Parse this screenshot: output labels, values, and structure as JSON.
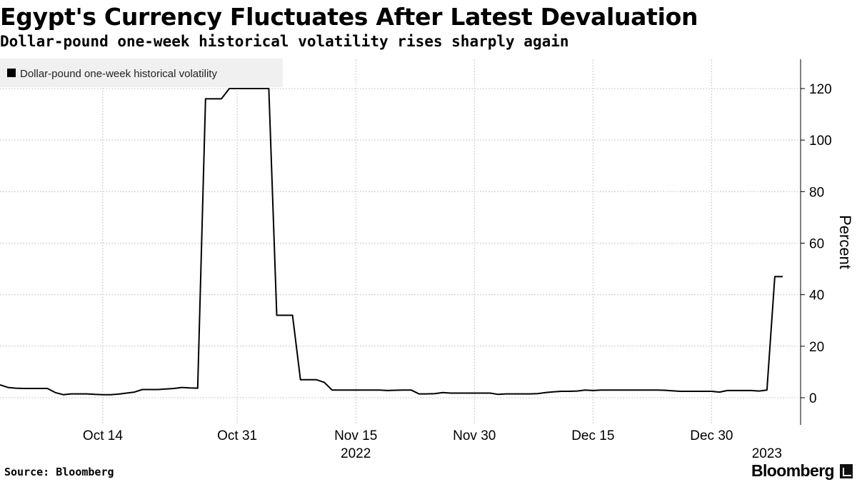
{
  "header": {
    "title": "Egypt's Currency Fluctuates After Latest Devaluation",
    "subtitle": "Dollar-pound one-week historical volatility rises sharply again"
  },
  "footer": {
    "source": "Source: Bloomberg",
    "logo_text": "Bloomberg"
  },
  "chart_data": {
    "type": "line",
    "title": "Egypt's Currency Fluctuates After Latest Devaluation",
    "subtitle": "Dollar-pound one-week historical volatility rises sharply again",
    "xlabel": "",
    "ylabel": "Percent",
    "ylim": [
      -10,
      130
    ],
    "yticks": [
      0,
      20,
      40,
      60,
      80,
      100,
      120
    ],
    "xlim": [
      "2022-10-01",
      "2023-01-09"
    ],
    "xticks": [
      {
        "date": "2022-10-14",
        "label": "Oct 14"
      },
      {
        "date": "2022-10-31",
        "label": "Oct 31"
      },
      {
        "date": "2022-11-15",
        "label": "Nov 15"
      },
      {
        "date": "2022-11-30",
        "label": "Nov 30"
      },
      {
        "date": "2022-12-15",
        "label": "Dec 15"
      },
      {
        "date": "2022-12-30",
        "label": "Dec 30"
      }
    ],
    "year_labels": [
      {
        "date": "2022-11-15",
        "label": "2022"
      },
      {
        "date": "2023-01-06",
        "label": "2023"
      }
    ],
    "grid": true,
    "legend_position": "top-left",
    "series": [
      {
        "name": "Dollar-pound one-week historical volatility",
        "color": "#000000",
        "x": [
          "2022-10-01",
          "2022-10-02",
          "2022-10-03",
          "2022-10-04",
          "2022-10-05",
          "2022-10-06",
          "2022-10-07",
          "2022-10-08",
          "2022-10-09",
          "2022-10-10",
          "2022-10-11",
          "2022-10-12",
          "2022-10-13",
          "2022-10-14",
          "2022-10-15",
          "2022-10-16",
          "2022-10-17",
          "2022-10-18",
          "2022-10-19",
          "2022-10-20",
          "2022-10-21",
          "2022-10-22",
          "2022-10-23",
          "2022-10-24",
          "2022-10-25",
          "2022-10-26",
          "2022-10-27",
          "2022-10-28",
          "2022-10-29",
          "2022-10-30",
          "2022-10-31",
          "2022-11-01",
          "2022-11-02",
          "2022-11-03",
          "2022-11-04",
          "2022-11-05",
          "2022-11-06",
          "2022-11-07",
          "2022-11-08",
          "2022-11-09",
          "2022-11-10",
          "2022-11-11",
          "2022-11-12",
          "2022-11-13",
          "2022-11-14",
          "2022-11-15",
          "2022-11-16",
          "2022-11-17",
          "2022-11-18",
          "2022-11-19",
          "2022-11-20",
          "2022-11-21",
          "2022-11-22",
          "2022-11-23",
          "2022-11-24",
          "2022-11-25",
          "2022-11-26",
          "2022-11-27",
          "2022-11-28",
          "2022-11-29",
          "2022-11-30",
          "2022-12-01",
          "2022-12-02",
          "2022-12-03",
          "2022-12-04",
          "2022-12-05",
          "2022-12-06",
          "2022-12-07",
          "2022-12-08",
          "2022-12-09",
          "2022-12-10",
          "2022-12-11",
          "2022-12-12",
          "2022-12-13",
          "2022-12-14",
          "2022-12-15",
          "2022-12-16",
          "2022-12-17",
          "2022-12-18",
          "2022-12-19",
          "2022-12-20",
          "2022-12-21",
          "2022-12-22",
          "2022-12-23",
          "2022-12-24",
          "2022-12-25",
          "2022-12-26",
          "2022-12-27",
          "2022-12-28",
          "2022-12-29",
          "2022-12-30",
          "2022-12-31",
          "2023-01-01",
          "2023-01-02",
          "2023-01-03",
          "2023-01-04",
          "2023-01-05",
          "2023-01-06",
          "2023-01-07",
          "2023-01-08"
        ],
        "values": [
          5,
          4,
          3.7,
          3.6,
          3.6,
          3.6,
          3.6,
          2,
          1.2,
          1.5,
          1.5,
          1.5,
          1.3,
          1.2,
          1.2,
          1.4,
          1.8,
          2.2,
          3.2,
          3.2,
          3.2,
          3.4,
          3.6,
          4,
          3.8,
          3.7,
          116,
          116,
          116,
          120,
          120,
          120,
          120,
          120,
          120,
          32,
          32,
          32,
          7,
          7,
          7,
          6,
          3,
          3,
          3,
          3,
          3,
          3,
          3,
          2.8,
          2.9,
          3,
          3,
          1.5,
          1.5,
          1.6,
          2,
          1.8,
          1.8,
          1.8,
          1.8,
          1.8,
          1.8,
          1.3,
          1.5,
          1.5,
          1.5,
          1.5,
          1.6,
          2,
          2.3,
          2.5,
          2.5,
          2.6,
          3,
          2.8,
          3,
          3,
          3,
          3,
          3,
          3,
          3,
          3,
          2.9,
          2.7,
          2.5,
          2.5,
          2.5,
          2.5,
          2.5,
          2.2,
          2.8,
          2.8,
          2.8,
          2.8,
          2.6,
          3,
          47,
          47
        ]
      }
    ]
  }
}
